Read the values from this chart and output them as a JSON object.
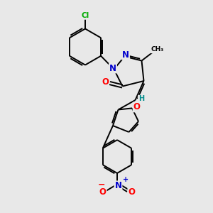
{
  "bg_color": "#e8e8e8",
  "bond_color": "#000000",
  "atom_colors": {
    "C": "#000000",
    "N": "#0000cd",
    "O": "#ff0000",
    "Cl": "#00aa00",
    "H": "#008b8b"
  }
}
